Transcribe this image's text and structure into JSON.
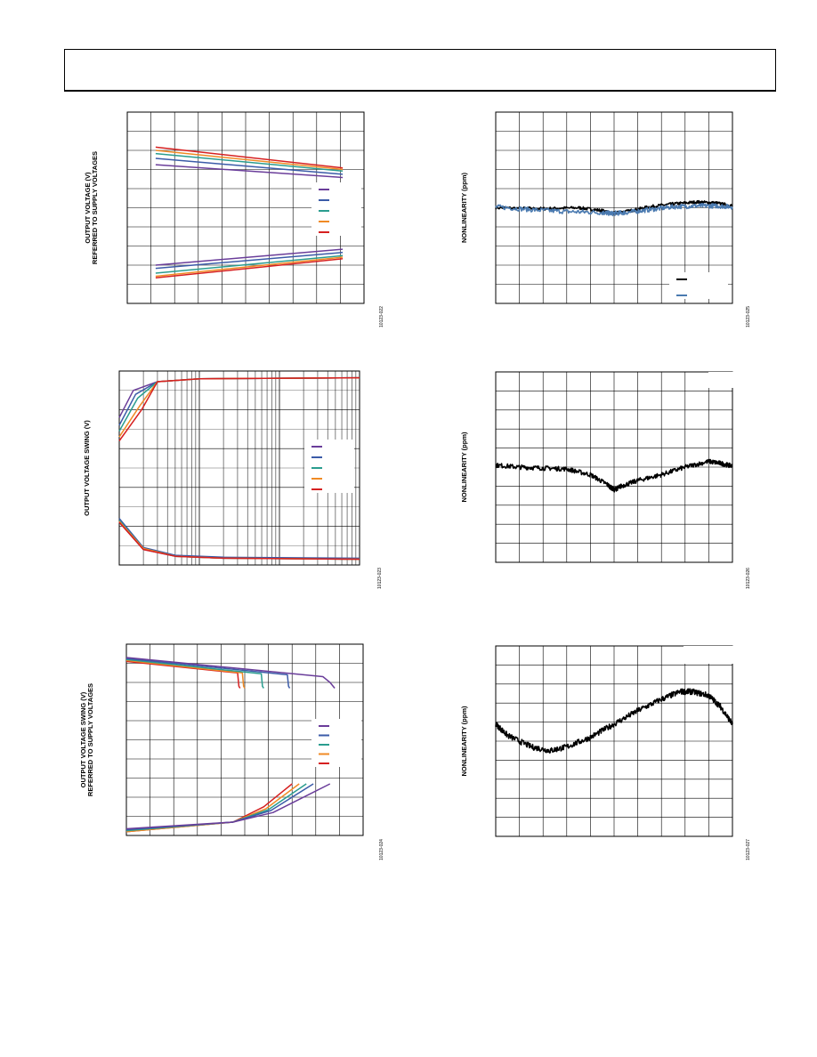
{
  "page": {
    "header": ""
  },
  "colors": {
    "purple": "#6a3d9a",
    "blue": "#3b5ba8",
    "teal": "#2a9d8f",
    "green": "#4caf50",
    "orange": "#f08a24",
    "red": "#d62020",
    "black": "#000000",
    "steel_blue": "#4a7ab0"
  },
  "chart_data": [
    {
      "id": "fig-1",
      "type": "line",
      "ylabel_lines": [
        "OUTPUT VOLTAGE (V)",
        "REFERRED TO SUPPLY VOLTAGES"
      ],
      "figure_id": "10123-022",
      "grid": true,
      "xlim": [
        0,
        10
      ],
      "ylim": [
        0,
        12
      ],
      "series": [
        {
          "color": "purple",
          "x": [
            1.2,
            9.1
          ],
          "y": [
            8.7,
            7.9
          ]
        },
        {
          "color": "blue",
          "x": [
            1.2,
            9.1
          ],
          "y": [
            9.1,
            8.1
          ]
        },
        {
          "color": "teal",
          "x": [
            1.2,
            9.1
          ],
          "y": [
            9.4,
            8.3
          ]
        },
        {
          "color": "orange",
          "x": [
            1.2,
            9.1
          ],
          "y": [
            9.6,
            8.4
          ]
        },
        {
          "color": "red",
          "x": [
            1.2,
            9.1
          ],
          "y": [
            9.8,
            8.5
          ]
        },
        {
          "color": "purple",
          "x": [
            1.2,
            9.1
          ],
          "y": [
            2.4,
            3.4
          ]
        },
        {
          "color": "blue",
          "x": [
            1.2,
            9.1
          ],
          "y": [
            2.2,
            3.2
          ]
        },
        {
          "color": "teal",
          "x": [
            1.2,
            9.1
          ],
          "y": [
            1.9,
            3.0
          ]
        },
        {
          "color": "orange",
          "x": [
            1.2,
            9.1
          ],
          "y": [
            1.7,
            2.9
          ]
        },
        {
          "color": "red",
          "x": [
            1.2,
            9.1
          ],
          "y": [
            1.6,
            2.8
          ]
        }
      ],
      "legend": {
        "placement": "right",
        "entries": [
          {
            "color": "purple"
          },
          {
            "color": "blue"
          },
          {
            "color": "teal"
          },
          {
            "color": "orange"
          },
          {
            "color": "red"
          }
        ]
      }
    },
    {
      "id": "fig-2",
      "type": "line",
      "ylabel_lines": [
        "OUTPUT VOLTAGE SWING (V)"
      ],
      "figure_id": "10123-023",
      "grid": true,
      "x_log_decades": 3,
      "xlim": [
        1,
        1000
      ],
      "ylim": [
        0,
        10
      ],
      "series": [
        {
          "color": "purple",
          "x": [
            1,
            1.5,
            3,
            10,
            1000
          ],
          "y": [
            7.6,
            9.0,
            9.45,
            9.6,
            9.65
          ]
        },
        {
          "color": "blue",
          "x": [
            1,
            1.6,
            3,
            10,
            1000
          ],
          "y": [
            7.2,
            8.8,
            9.45,
            9.6,
            9.65
          ]
        },
        {
          "color": "teal",
          "x": [
            1,
            1.7,
            3,
            10,
            1000
          ],
          "y": [
            6.9,
            8.6,
            9.45,
            9.6,
            9.65
          ]
        },
        {
          "color": "orange",
          "x": [
            1,
            1.8,
            3,
            10,
            1000
          ],
          "y": [
            6.6,
            8.2,
            9.45,
            9.6,
            9.65
          ]
        },
        {
          "color": "red",
          "x": [
            1,
            1.9,
            3,
            10,
            1000
          ],
          "y": [
            6.4,
            8.0,
            9.45,
            9.6,
            9.65
          ]
        },
        {
          "color": "purple",
          "x": [
            1,
            2,
            5,
            20,
            1000
          ],
          "y": [
            2.2,
            0.8,
            0.45,
            0.35,
            0.3
          ]
        },
        {
          "color": "blue",
          "x": [
            1,
            2,
            5,
            20,
            1000
          ],
          "y": [
            2.4,
            0.9,
            0.5,
            0.4,
            0.35
          ]
        },
        {
          "color": "teal",
          "x": [
            1,
            2,
            5,
            20,
            1000
          ],
          "y": [
            2.3,
            0.85,
            0.45,
            0.35,
            0.3
          ]
        },
        {
          "color": "orange",
          "x": [
            1,
            2,
            5,
            20,
            1000
          ],
          "y": [
            2.25,
            0.85,
            0.45,
            0.35,
            0.3
          ]
        },
        {
          "color": "red",
          "x": [
            1,
            2,
            5,
            20,
            1000
          ],
          "y": [
            2.2,
            0.8,
            0.45,
            0.35,
            0.3
          ]
        }
      ],
      "legend": {
        "placement": "right",
        "entries": [
          {
            "color": "purple"
          },
          {
            "color": "blue"
          },
          {
            "color": "teal"
          },
          {
            "color": "orange"
          },
          {
            "color": "red"
          }
        ]
      }
    },
    {
      "id": "fig-3",
      "type": "line",
      "ylabel_lines": [
        "OUTPUT VOLTAGE SWING (V)",
        "REFERRED TO SUPPLY VOLTAGES"
      ],
      "figure_id": "10123-024",
      "grid": true,
      "xlim": [
        0,
        10
      ],
      "ylim": [
        0,
        10
      ],
      "series": [
        {
          "color": "red",
          "x": [
            0,
            4.7,
            4.75,
            4.8
          ],
          "y": [
            9.1,
            8.5,
            7.8,
            7.7
          ]
        },
        {
          "color": "orange",
          "x": [
            0,
            4.9,
            4.95,
            5.0
          ],
          "y": [
            9.15,
            8.5,
            7.8,
            7.7
          ]
        },
        {
          "color": "teal",
          "x": [
            0,
            5.7,
            5.75,
            5.8
          ],
          "y": [
            9.2,
            8.45,
            7.8,
            7.7
          ]
        },
        {
          "color": "blue",
          "x": [
            0,
            6.8,
            6.85,
            6.9
          ],
          "y": [
            9.25,
            8.4,
            7.8,
            7.7
          ]
        },
        {
          "color": "purple",
          "x": [
            0,
            8.3,
            8.6,
            8.8
          ],
          "y": [
            9.3,
            8.3,
            8.0,
            7.7
          ]
        },
        {
          "color": "red",
          "x": [
            0,
            4.5,
            5.8,
            7.0
          ],
          "y": [
            0.2,
            0.7,
            1.5,
            2.7
          ]
        },
        {
          "color": "orange",
          "x": [
            0,
            4.5,
            5.9,
            7.3
          ],
          "y": [
            0.2,
            0.7,
            1.4,
            2.7
          ]
        },
        {
          "color": "teal",
          "x": [
            0,
            4.5,
            6.0,
            7.6
          ],
          "y": [
            0.25,
            0.7,
            1.35,
            2.7
          ]
        },
        {
          "color": "blue",
          "x": [
            0,
            4.5,
            6.1,
            7.9
          ],
          "y": [
            0.3,
            0.7,
            1.3,
            2.7
          ]
        },
        {
          "color": "purple",
          "x": [
            0,
            4.5,
            6.2,
            8.6
          ],
          "y": [
            0.35,
            0.7,
            1.2,
            2.7
          ]
        }
      ],
      "legend": {
        "placement": "right",
        "entries": [
          {
            "color": "purple"
          },
          {
            "color": "blue"
          },
          {
            "color": "teal"
          },
          {
            "color": "orange"
          },
          {
            "color": "red"
          }
        ]
      }
    },
    {
      "id": "fig-4",
      "type": "line",
      "ylabel_lines": [
        "NONLINEARITY (ppm)"
      ],
      "figure_id": "10123-025",
      "grid": true,
      "xlim": [
        0,
        10
      ],
      "ylim": [
        -5,
        5
      ],
      "series": [
        {
          "color": "black",
          "noise": 0.08,
          "x": [
            0,
            2,
            3.5,
            4.5,
            4.9,
            5.5,
            6.5,
            7.5,
            8.5,
            9.3,
            10
          ],
          "y": [
            0,
            -0.05,
            0,
            -0.15,
            -0.3,
            -0.2,
            0.05,
            0.2,
            0.3,
            0.25,
            0.1
          ]
        },
        {
          "color": "steel_blue",
          "noise": 0.12,
          "x": [
            0,
            1.5,
            3,
            4.5,
            4.9,
            5.5,
            6.5,
            7.5,
            8.5,
            9.3,
            10
          ],
          "y": [
            0.05,
            -0.1,
            -0.2,
            -0.25,
            -0.3,
            -0.25,
            -0.1,
            0.05,
            0.1,
            0.1,
            0.05
          ]
        }
      ],
      "legend": {
        "placement": "bottom-right",
        "entries": [
          {
            "color": "black"
          },
          {
            "color": "steel_blue"
          }
        ]
      }
    },
    {
      "id": "fig-5",
      "type": "line",
      "ylabel_lines": [
        "NONLINEARITY (ppm)"
      ],
      "figure_id": "10123-026",
      "grid": true,
      "xlim": [
        0,
        10
      ],
      "ylim": [
        -5,
        5
      ],
      "series": [
        {
          "color": "black",
          "noise": 0.12,
          "x": [
            0,
            1,
            2,
            3,
            4,
            4.7,
            5,
            5.3,
            6,
            7,
            8,
            9,
            9.5,
            10
          ],
          "y": [
            0.1,
            0.0,
            -0.05,
            -0.1,
            -0.4,
            -0.9,
            -1.2,
            -1.0,
            -0.7,
            -0.4,
            0,
            0.3,
            0.2,
            0.05
          ]
        }
      ],
      "legend": {
        "placement": "top-right",
        "entries": []
      }
    },
    {
      "id": "fig-6",
      "type": "line",
      "ylabel_lines": [
        "NONLINEARITY (ppm)"
      ],
      "figure_id": "10123-027",
      "grid": true,
      "xlim": [
        0,
        10
      ],
      "ylim": [
        -5,
        5
      ],
      "series": [
        {
          "color": "black",
          "noise": 0.15,
          "x": [
            0,
            0.5,
            1.5,
            2.3,
            3,
            4,
            5,
            6,
            7,
            7.8,
            8.3,
            9,
            9.5,
            10
          ],
          "y": [
            0.9,
            0.3,
            -0.3,
            -0.5,
            -0.3,
            0.2,
            0.9,
            1.6,
            2.2,
            2.6,
            2.6,
            2.4,
            1.8,
            0.9
          ]
        }
      ],
      "legend": {
        "placement": "top-right",
        "entries": []
      }
    }
  ]
}
